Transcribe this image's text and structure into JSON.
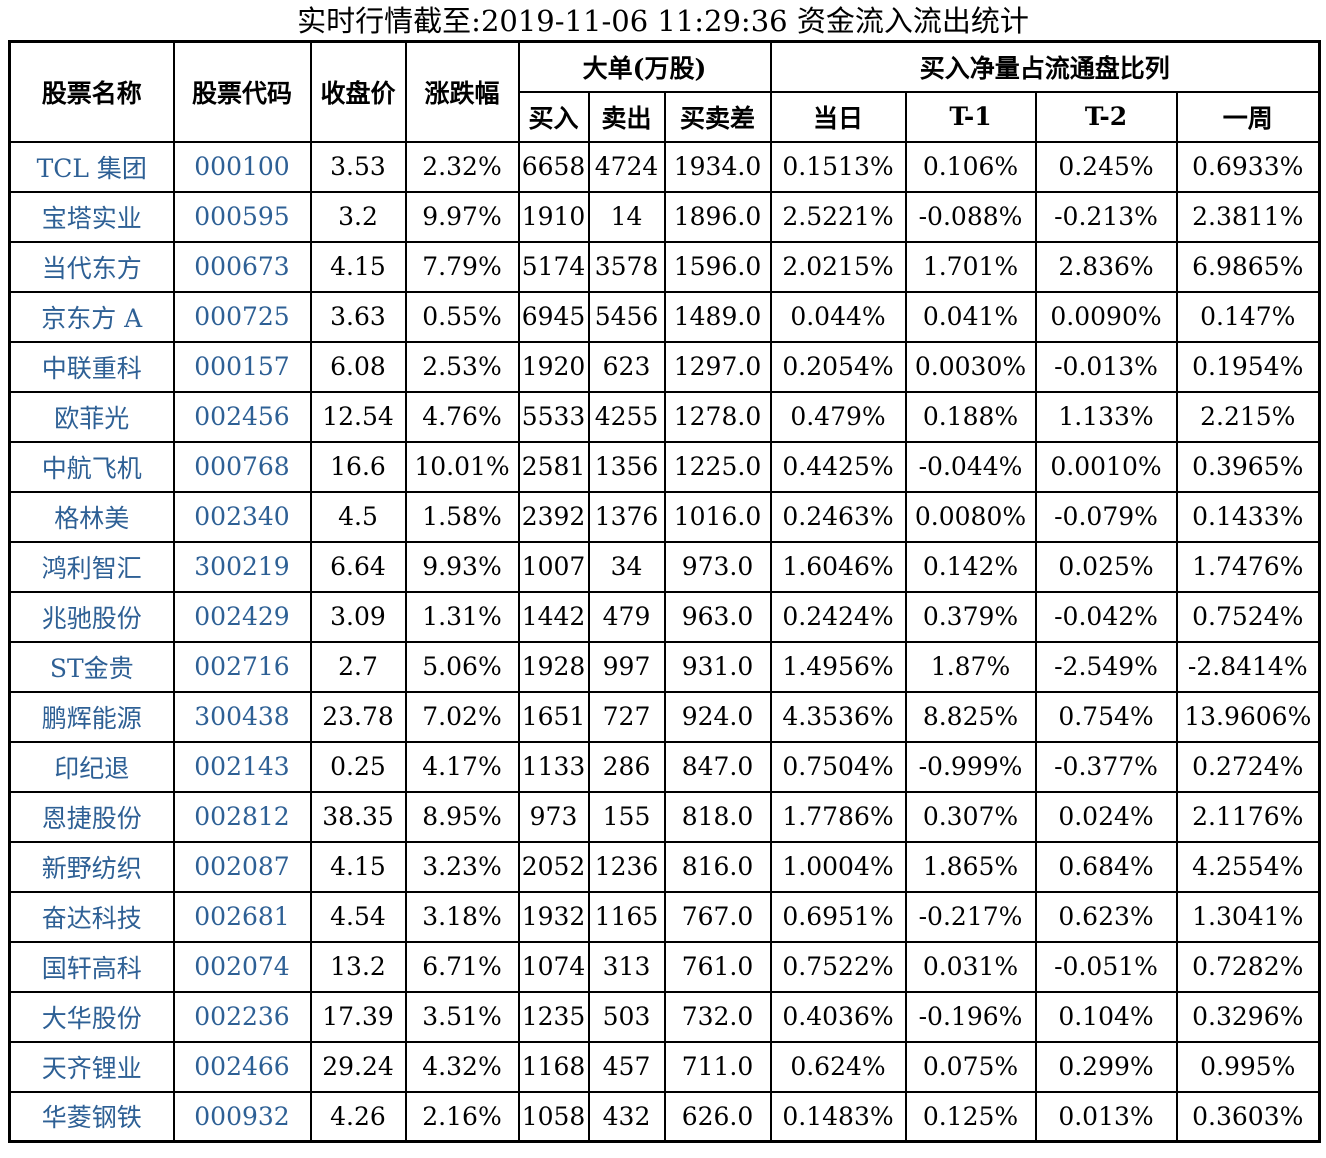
{
  "title": "实时行情截至:2019-11-06 11:29:36 资金流入流出统计",
  "colors": {
    "stock_link_blue": "#2e6095",
    "border": "#000000",
    "text": "#000000",
    "background": "#ffffff"
  },
  "table": {
    "headers": {
      "stock_name": "股票名称",
      "stock_code": "股票代码",
      "close_price": "收盘价",
      "change_pct": "涨跌幅",
      "big_order_group": "大单(万股)",
      "buy": "买入",
      "sell": "卖出",
      "buy_sell_diff": "买卖差",
      "net_buy_ratio_group": "买入净量占流通盘比列",
      "today": "当日",
      "t_minus_1": "T-1",
      "t_minus_2": "T-2",
      "one_week": "一周"
    },
    "rows": [
      [
        "TCL 集团",
        "000100",
        "3.53",
        "2.32%",
        "6658",
        "4724",
        "1934.0",
        "0.1513%",
        "0.106%",
        "0.245%",
        "0.6933%"
      ],
      [
        "宝塔实业",
        "000595",
        "3.2",
        "9.97%",
        "1910",
        "14",
        "1896.0",
        "2.5221%",
        "-0.088%",
        "-0.213%",
        "2.3811%"
      ],
      [
        "当代东方",
        "000673",
        "4.15",
        "7.79%",
        "5174",
        "3578",
        "1596.0",
        "2.0215%",
        "1.701%",
        "2.836%",
        "6.9865%"
      ],
      [
        "京东方 A",
        "000725",
        "3.63",
        "0.55%",
        "6945",
        "5456",
        "1489.0",
        "0.044%",
        "0.041%",
        "0.0090%",
        "0.147%"
      ],
      [
        "中联重科",
        "000157",
        "6.08",
        "2.53%",
        "1920",
        "623",
        "1297.0",
        "0.2054%",
        "0.0030%",
        "-0.013%",
        "0.1954%"
      ],
      [
        "欧菲光",
        "002456",
        "12.54",
        "4.76%",
        "5533",
        "4255",
        "1278.0",
        "0.479%",
        "0.188%",
        "1.133%",
        "2.215%"
      ],
      [
        "中航飞机",
        "000768",
        "16.6",
        "10.01%",
        "2581",
        "1356",
        "1225.0",
        "0.4425%",
        "-0.044%",
        "0.0010%",
        "0.3965%"
      ],
      [
        "格林美",
        "002340",
        "4.5",
        "1.58%",
        "2392",
        "1376",
        "1016.0",
        "0.2463%",
        "0.0080%",
        "-0.079%",
        "0.1433%"
      ],
      [
        "鸿利智汇",
        "300219",
        "6.64",
        "9.93%",
        "1007",
        "34",
        "973.0",
        "1.6046%",
        "0.142%",
        "0.025%",
        "1.7476%"
      ],
      [
        "兆驰股份",
        "002429",
        "3.09",
        "1.31%",
        "1442",
        "479",
        "963.0",
        "0.2424%",
        "0.379%",
        "-0.042%",
        "0.7524%"
      ],
      [
        "ST金贵",
        "002716",
        "2.7",
        "5.06%",
        "1928",
        "997",
        "931.0",
        "1.4956%",
        "1.87%",
        "-2.549%",
        "-2.8414%"
      ],
      [
        "鹏辉能源",
        "300438",
        "23.78",
        "7.02%",
        "1651",
        "727",
        "924.0",
        "4.3536%",
        "8.825%",
        "0.754%",
        "13.9606%"
      ],
      [
        "印纪退",
        "002143",
        "0.25",
        "4.17%",
        "1133",
        "286",
        "847.0",
        "0.7504%",
        "-0.999%",
        "-0.377%",
        "0.2724%"
      ],
      [
        "恩捷股份",
        "002812",
        "38.35",
        "8.95%",
        "973",
        "155",
        "818.0",
        "1.7786%",
        "0.307%",
        "0.024%",
        "2.1176%"
      ],
      [
        "新野纺织",
        "002087",
        "4.15",
        "3.23%",
        "2052",
        "1236",
        "816.0",
        "1.0004%",
        "1.865%",
        "0.684%",
        "4.2554%"
      ],
      [
        "奋达科技",
        "002681",
        "4.54",
        "3.18%",
        "1932",
        "1165",
        "767.0",
        "0.6951%",
        "-0.217%",
        "0.623%",
        "1.3041%"
      ],
      [
        "国轩高科",
        "002074",
        "13.2",
        "6.71%",
        "1074",
        "313",
        "761.0",
        "0.7522%",
        "0.031%",
        "-0.051%",
        "0.7282%"
      ],
      [
        "大华股份",
        "002236",
        "17.39",
        "3.51%",
        "1235",
        "503",
        "732.0",
        "0.4036%",
        "-0.196%",
        "0.104%",
        "0.3296%"
      ],
      [
        "天齐锂业",
        "002466",
        "29.24",
        "4.32%",
        "1168",
        "457",
        "711.0",
        "0.624%",
        "0.075%",
        "0.299%",
        "0.995%"
      ],
      [
        "华菱钢铁",
        "000932",
        "4.26",
        "2.16%",
        "1058",
        "432",
        "626.0",
        "0.1483%",
        "0.125%",
        "0.013%",
        "0.3603%"
      ]
    ]
  }
}
